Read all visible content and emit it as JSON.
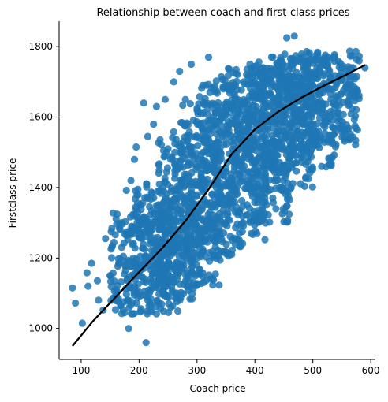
{
  "chart_data": {
    "type": "scatter",
    "title": "Relationship between coach and first-class prices",
    "xlabel": "Coach price",
    "ylabel": "Firstclass price",
    "xlim": [
      62,
      608
    ],
    "ylim": [
      912,
      1872
    ],
    "xticks": [
      100,
      200,
      300,
      400,
      500,
      600
    ],
    "yticks": [
      1000,
      1200,
      1400,
      1600,
      1800
    ],
    "grid": false,
    "colors": {
      "points": "#1f77b4",
      "trend": "#000000"
    },
    "cloud": {
      "note_points_sample": "representative points read from the dense scatter",
      "points": [
        [
          85,
          1115
        ],
        [
          90,
          1072
        ],
        [
          102,
          1015
        ],
        [
          110,
          1158
        ],
        [
          112,
          1120
        ],
        [
          118,
          1185
        ],
        [
          128,
          1135
        ],
        [
          130,
          1080
        ],
        [
          138,
          1052
        ],
        [
          142,
          1255
        ],
        [
          150,
          1150
        ],
        [
          152,
          1275
        ],
        [
          158,
          1088
        ],
        [
          162,
          1105
        ],
        [
          165,
          1185
        ],
        [
          170,
          1230
        ],
        [
          175,
          1045
        ],
        [
          178,
          1392
        ],
        [
          180,
          1080
        ],
        [
          182,
          1000
        ],
        [
          186,
          1420
        ],
        [
          190,
          1200
        ],
        [
          192,
          1480
        ],
        [
          195,
          1515
        ],
        [
          198,
          1395
        ],
        [
          200,
          1260
        ],
        [
          202,
          1150
        ],
        [
          208,
          1640
        ],
        [
          210,
          1205
        ],
        [
          212,
          960
        ],
        [
          215,
          1545
        ],
        [
          220,
          1085
        ],
        [
          225,
          1580
        ],
        [
          230,
          1630
        ],
        [
          235,
          1410
        ],
        [
          240,
          1300
        ],
        [
          245,
          1650
        ],
        [
          250,
          1510
        ],
        [
          255,
          1060
        ],
        [
          260,
          1700
        ],
        [
          265,
          1185
        ],
        [
          270,
          1730
        ],
        [
          280,
          1650
        ],
        [
          285,
          1108
        ],
        [
          290,
          1750
        ],
        [
          300,
          1200
        ],
        [
          310,
          1690
        ],
        [
          320,
          1770
        ],
        [
          330,
          1250
        ],
        [
          340,
          1400
        ],
        [
          350,
          1300
        ],
        [
          360,
          1210
        ],
        [
          370,
          1330
        ],
        [
          380,
          1300
        ],
        [
          390,
          1480
        ],
        [
          400,
          1400
        ],
        [
          410,
          1600
        ],
        [
          420,
          1550
        ],
        [
          430,
          1480
        ],
        [
          440,
          1450
        ],
        [
          450,
          1560
        ],
        [
          455,
          1825
        ],
        [
          460,
          1700
        ],
        [
          468,
          1830
        ],
        [
          470,
          1490
        ],
        [
          480,
          1700
        ],
        [
          490,
          1630
        ],
        [
          500,
          1690
        ],
        [
          510,
          1640
        ],
        [
          520,
          1760
        ],
        [
          530,
          1680
        ],
        [
          540,
          1660
        ],
        [
          550,
          1710
        ],
        [
          560,
          1720
        ],
        [
          570,
          1740
        ],
        [
          580,
          1760
        ],
        [
          590,
          1740
        ]
      ],
      "density_bands": [
        {
          "x": [
            150,
            270
          ],
          "y": [
            1040,
            1330
          ]
        },
        {
          "x": [
            190,
            300
          ],
          "y": [
            1080,
            1420
          ]
        },
        {
          "x": [
            230,
            340
          ],
          "y": [
            1120,
            1560
          ]
        },
        {
          "x": [
            270,
            380
          ],
          "y": [
            1200,
            1640
          ]
        },
        {
          "x": [
            300,
            420
          ],
          "y": [
            1250,
            1700
          ]
        },
        {
          "x": [
            330,
            460
          ],
          "y": [
            1300,
            1740
          ]
        },
        {
          "x": [
            380,
            500
          ],
          "y": [
            1380,
            1760
          ]
        },
        {
          "x": [
            420,
            540
          ],
          "y": [
            1450,
            1780
          ]
        },
        {
          "x": [
            460,
            580
          ],
          "y": [
            1520,
            1790
          ]
        }
      ]
    },
    "trend": {
      "x": [
        85,
        120,
        160,
        200,
        240,
        280,
        320,
        360,
        400,
        440,
        480,
        520,
        560,
        590
      ],
      "y": [
        950,
        1020,
        1090,
        1160,
        1228,
        1305,
        1395,
        1495,
        1565,
        1615,
        1655,
        1690,
        1722,
        1748
      ]
    }
  }
}
